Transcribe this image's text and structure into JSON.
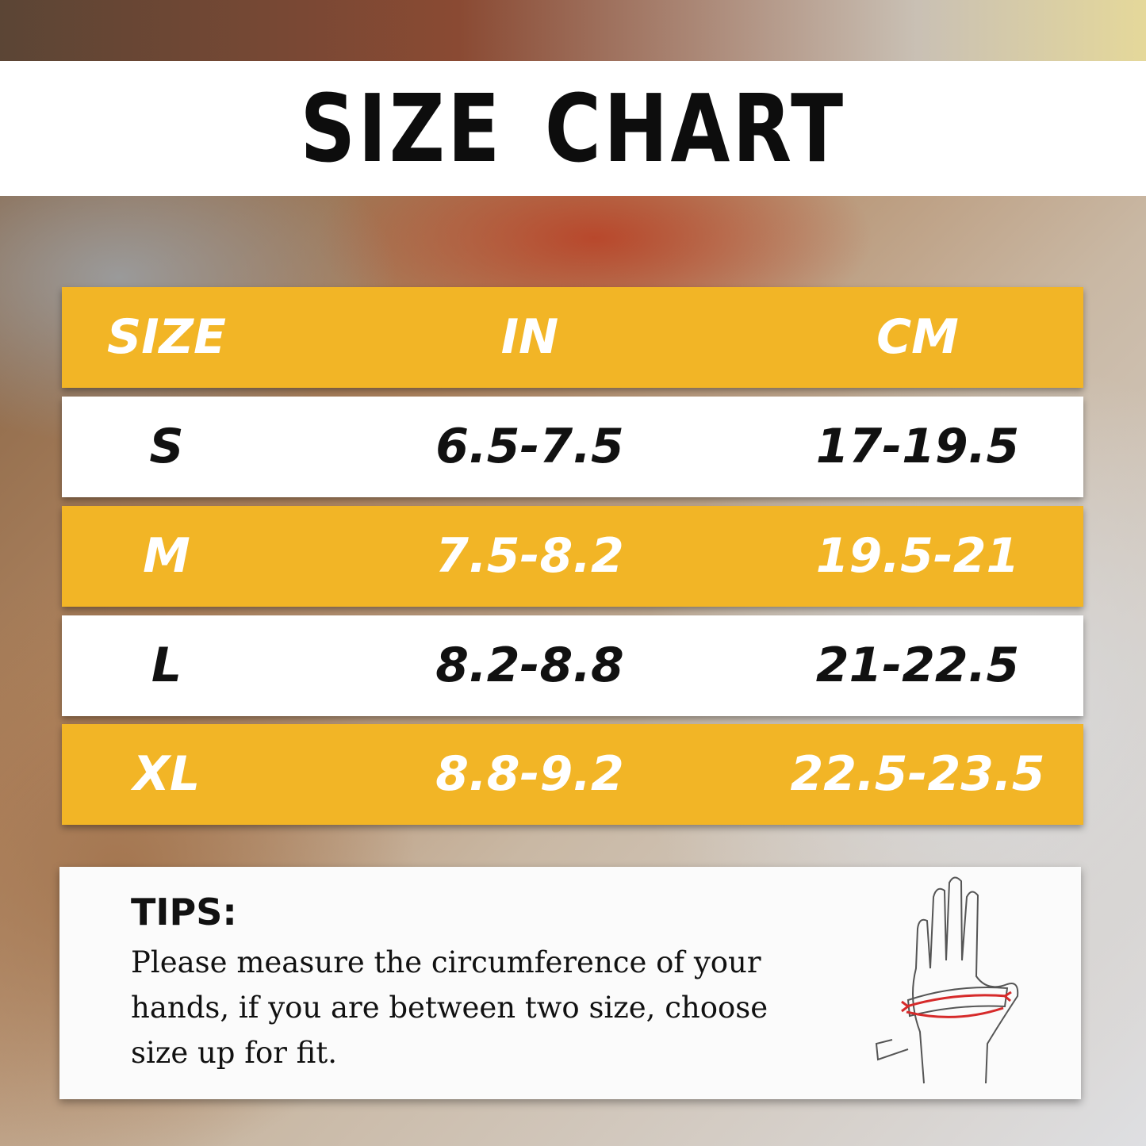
{
  "title": "SIZE CHART",
  "colors": {
    "accent": "#F2B526",
    "header_text": "#FFFFFF",
    "dark_text": "#111111"
  },
  "table": {
    "headers": [
      "SIZE",
      "IN",
      "CM"
    ],
    "rows": [
      {
        "size": "S",
        "in": "6.5-7.5",
        "cm": "17-19.5"
      },
      {
        "size": "M",
        "in": "7.5-8.2",
        "cm": "19.5-21"
      },
      {
        "size": "L",
        "in": "8.2-8.8",
        "cm": "21-22.5"
      },
      {
        "size": "XL",
        "in": "8.8-9.2",
        "cm": "22.5-23.5"
      }
    ]
  },
  "tips": {
    "heading": "TIPS:",
    "text": "Please measure the circumference of your hands, if you are between two size, choose size up for fit.",
    "icon": "hand-measuring-tape-icon"
  }
}
